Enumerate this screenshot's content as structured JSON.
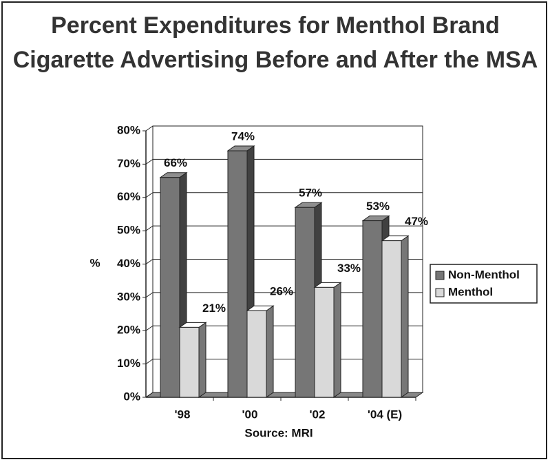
{
  "chart_data": {
    "type": "bar3d",
    "title": "Percent Expenditures for Menthol Brand Cigarette Advertising Before and After the MSA",
    "ylabel": "%",
    "xlabel": "Source: MRI",
    "categories": [
      "'98",
      "'00",
      "'02",
      "'04 (E)"
    ],
    "series": [
      {
        "name": "Non-Menthol",
        "color": "#767676",
        "values": [
          66,
          74,
          57,
          53
        ],
        "value_labels": [
          "66%",
          "74%",
          "57%",
          "53%"
        ]
      },
      {
        "name": "Menthol",
        "color": "#d9d9d9",
        "values": [
          21,
          26,
          33,
          47
        ],
        "value_labels": [
          "21%",
          "26%",
          "33%",
          "47%"
        ]
      }
    ],
    "ylim": [
      0,
      80
    ],
    "yticks": [
      {
        "value": 0,
        "label": "0%"
      },
      {
        "value": 10,
        "label": "10%"
      },
      {
        "value": 20,
        "label": "20%"
      },
      {
        "value": 30,
        "label": "30%"
      },
      {
        "value": 40,
        "label": "40%"
      },
      {
        "value": 50,
        "label": "50%"
      },
      {
        "value": 60,
        "label": "60%"
      },
      {
        "value": 70,
        "label": "70%"
      },
      {
        "value": 80,
        "label": "80%"
      }
    ],
    "grid": true,
    "legend": "right"
  }
}
